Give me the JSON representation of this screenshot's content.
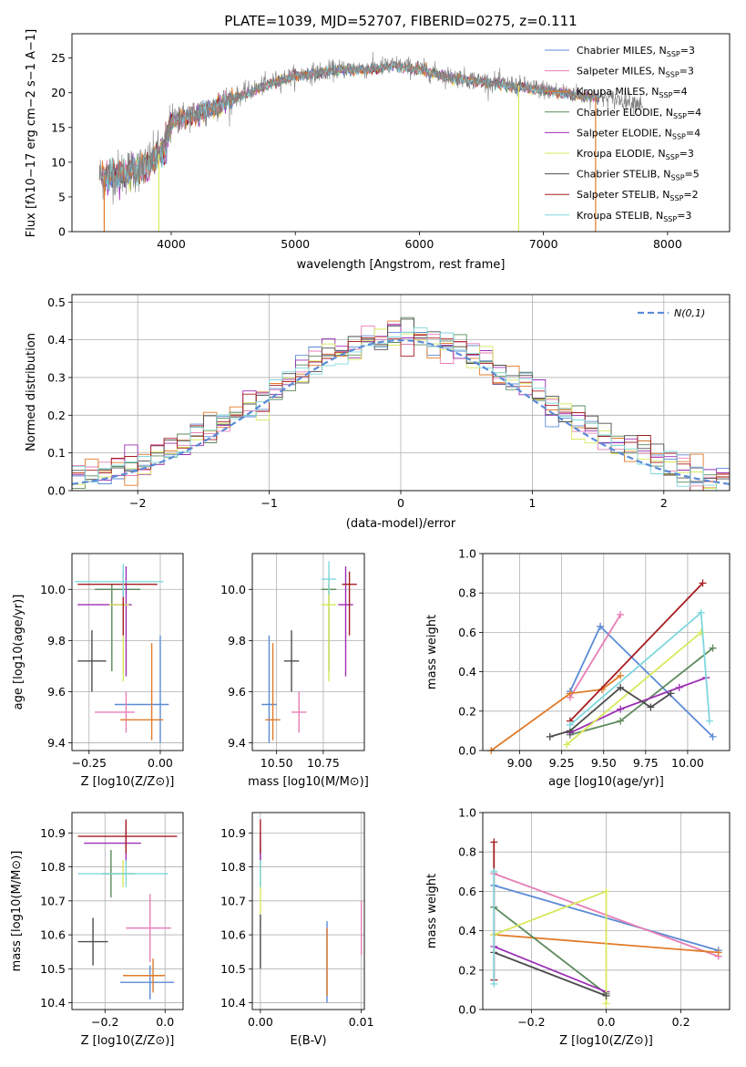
{
  "colors": [
    "#5b8bd6",
    "#e77fb6",
    "#e07b2a",
    "#5c8a5c",
    "#9d2fb5",
    "#d8e85c",
    "#4d4d4d",
    "#a71e22",
    "#7fd8de"
  ],
  "chart_data": [
    {
      "id": "spectrum",
      "type": "line",
      "title": "PLATE=1039, MJD=52707, FIBERID=0275, z=0.111",
      "xlabel": "wavelength [Angstrom, rest frame]",
      "ylabel": "Flux [f$_\\lambda$10$^{-17}$ erg cm$^{-2}$ s$^{-1}$ A$^{-1}$]",
      "ylabel_text": "Flux [fλ10−17 erg cm−2 s−1 A−1]",
      "xlim": [
        3200,
        8500
      ],
      "ylim": [
        0,
        28.5
      ],
      "xticks": [
        4000,
        5000,
        6000,
        7000,
        8000
      ],
      "yticks": [
        0,
        5,
        10,
        15,
        20,
        25
      ],
      "grid": false,
      "legend_placement": "right",
      "legend": [
        "Chabrier MILES, N_SSP=3",
        "Salpeter MILES, N_SSP=3",
        "Kroupa MILES, N_SSP=4",
        "Chabrier ELODIE, N_SSP=4",
        "Salpeter ELODIE, N_SSP=4",
        "Kroupa ELODIE, N_SSP=3",
        "Chabrier STELIB, N_SSP=5",
        "Salpeter STELIB, N_SSP=2",
        "Kroupa STELIB, N_SSP=3"
      ],
      "legend_parts": [
        {
          "pre": "Chabrier MILES, N",
          "sub": "SSP",
          "post": "=3"
        },
        {
          "pre": "Salpeter MILES, N",
          "sub": "SSP",
          "post": "=3"
        },
        {
          "pre": "Kroupa MILES, N",
          "sub": "SSP",
          "post": "=4"
        },
        {
          "pre": "Chabrier ELODIE, N",
          "sub": "SSP",
          "post": "=4"
        },
        {
          "pre": "Salpeter ELODIE, N",
          "sub": "SSP",
          "post": "=4"
        },
        {
          "pre": "Kroupa ELODIE, N",
          "sub": "SSP",
          "post": "=3"
        },
        {
          "pre": "Chabrier STELIB, N",
          "sub": "SSP",
          "post": "=5"
        },
        {
          "pre": "Salpeter STELIB, N",
          "sub": "SSP",
          "post": "=2"
        },
        {
          "pre": "Kroupa STELIB, N",
          "sub": "SSP",
          "post": "=3"
        }
      ],
      "continuum": [
        [
          3420,
          8
        ],
        [
          3600,
          8.5
        ],
        [
          3800,
          9.5
        ],
        [
          3950,
          12
        ],
        [
          4000,
          16
        ],
        [
          4200,
          17
        ],
        [
          4400,
          18.5
        ],
        [
          4600,
          20
        ],
        [
          4800,
          21.5
        ],
        [
          5000,
          22.5
        ],
        [
          5200,
          23
        ],
        [
          5400,
          23.5
        ],
        [
          5600,
          23.5
        ],
        [
          5800,
          24
        ],
        [
          6000,
          23.5
        ],
        [
          6200,
          22.5
        ],
        [
          6400,
          22
        ],
        [
          6600,
          21.5
        ],
        [
          6800,
          21
        ],
        [
          7000,
          20.5
        ],
        [
          7200,
          20
        ],
        [
          7400,
          19.5
        ],
        [
          7600,
          19
        ],
        [
          7800,
          18.5
        ]
      ],
      "drops": [
        [
          3460,
          0,
          "#e07b2a"
        ],
        [
          3900,
          0,
          "#d8e85c"
        ],
        [
          6800,
          0,
          "#d8e85c"
        ],
        [
          7420,
          0,
          "#e07b2a"
        ]
      ]
    },
    {
      "id": "residuals",
      "type": "histogram",
      "xlabel": "(data-model)/error",
      "ylabel": "Normed distribution",
      "xlim": [
        -2.5,
        2.5
      ],
      "ylim": [
        0,
        0.52
      ],
      "xticks": [
        -2,
        -1,
        0,
        1,
        2
      ],
      "yticks": [
        0.0,
        0.1,
        0.2,
        0.3,
        0.4,
        0.5
      ],
      "grid": true,
      "legend_placement": "top-right",
      "gauss_label": "N(0,1)",
      "gauss_color": "#5b8bd6",
      "bin_width": 0.1
    },
    {
      "id": "age_vs_Z",
      "type": "errorbar",
      "xlabel": "Z [log10(Z/Z⊙)]",
      "ylabel": "age  [log10(age/yr)]",
      "xlim": [
        -0.31,
        0.08
      ],
      "ylim": [
        9.37,
        10.14
      ],
      "xticks": [
        -0.25,
        0.0
      ],
      "xticklabels": [
        "−0.25",
        "0.00"
      ],
      "yticks": [
        9.4,
        9.6,
        9.8,
        10.0
      ],
      "yticklabels": [
        "9.4",
        "9.6",
        "9.8",
        "10.0"
      ],
      "grid": true,
      "points": [
        {
          "x": 0.0,
          "y": 9.55,
          "xerr": [
            0.16,
            0.03
          ],
          "yerr": [
            0.15,
            0.27
          ],
          "c": 0
        },
        {
          "x": -0.12,
          "y": 9.52,
          "xerr": [
            0.11,
            0.03
          ],
          "yerr": [
            0.08,
            0.08
          ],
          "c": 1
        },
        {
          "x": -0.03,
          "y": 9.49,
          "xerr": [
            0.11,
            0.04
          ],
          "yerr": [
            0.08,
            0.3
          ],
          "c": 2
        },
        {
          "x": -0.17,
          "y": 10.0,
          "xerr": [
            0.06,
            0.1
          ],
          "yerr": [
            0.32,
            0.02
          ],
          "c": 3
        },
        {
          "x": -0.12,
          "y": 9.94,
          "xerr": [
            0.17,
            0.02
          ],
          "yerr": [
            0.28,
            0.15
          ],
          "c": 4
        },
        {
          "x": -0.13,
          "y": 9.94,
          "xerr": [
            0.05,
            0.02
          ],
          "yerr": [
            0.3,
            0.12
          ],
          "c": 5
        },
        {
          "x": -0.24,
          "y": 9.72,
          "xerr": [
            0.05,
            0.05
          ],
          "yerr": [
            0.12,
            0.12
          ],
          "c": 6
        },
        {
          "x": -0.13,
          "y": 10.02,
          "xerr": [
            0.16,
            0.12
          ],
          "yerr": [
            0.2,
            0.05
          ],
          "c": 7
        },
        {
          "x": -0.13,
          "y": 10.03,
          "xerr": [
            0.17,
            0.14
          ],
          "yerr": [
            0.06,
            0.07
          ],
          "c": 8
        }
      ]
    },
    {
      "id": "age_vs_mass",
      "type": "errorbar",
      "xlabel": "mass [log10(M/M⊙)]",
      "xlim": [
        10.37,
        10.97
      ],
      "ylim": [
        9.37,
        10.14
      ],
      "xticks": [
        10.5,
        10.75
      ],
      "xticklabels": [
        "10.50",
        "10.75"
      ],
      "yticks": [
        9.4,
        9.6,
        9.8,
        10.0
      ],
      "yticklabels": [
        "9.4",
        "9.6",
        "9.8",
        "10.0"
      ],
      "grid": true,
      "points": [
        {
          "x": 10.46,
          "y": 9.55,
          "xerr": [
            0.04,
            0.04
          ],
          "yerr": [
            0.15,
            0.27
          ],
          "c": 0
        },
        {
          "x": 10.62,
          "y": 9.52,
          "xerr": [
            0.04,
            0.04
          ],
          "yerr": [
            0.08,
            0.08
          ],
          "c": 1
        },
        {
          "x": 10.48,
          "y": 9.49,
          "xerr": [
            0.04,
            0.04
          ],
          "yerr": [
            0.08,
            0.3
          ],
          "c": 2
        },
        {
          "x": 10.78,
          "y": 10.0,
          "xerr": [
            0.04,
            0.04
          ],
          "yerr": [
            0.32,
            0.02
          ],
          "c": 3
        },
        {
          "x": 10.87,
          "y": 9.94,
          "xerr": [
            0.04,
            0.04
          ],
          "yerr": [
            0.28,
            0.15
          ],
          "c": 4
        },
        {
          "x": 10.78,
          "y": 9.94,
          "xerr": [
            0.04,
            0.04
          ],
          "yerr": [
            0.3,
            0.12
          ],
          "c": 5
        },
        {
          "x": 10.58,
          "y": 9.72,
          "xerr": [
            0.04,
            0.04
          ],
          "yerr": [
            0.12,
            0.12
          ],
          "c": 6
        },
        {
          "x": 10.89,
          "y": 10.02,
          "xerr": [
            0.04,
            0.04
          ],
          "yerr": [
            0.2,
            0.05
          ],
          "c": 7
        },
        {
          "x": 10.78,
          "y": 10.04,
          "xerr": [
            0.04,
            0.04
          ],
          "yerr": [
            0.06,
            0.07
          ],
          "c": 8
        }
      ]
    },
    {
      "id": "weight_vs_age",
      "type": "line",
      "xlabel": "age  [log10(age/yr)]",
      "ylabel": "mass weight",
      "xlim": [
        8.78,
        10.25
      ],
      "ylim": [
        0.0,
        1.0
      ],
      "xticks": [
        9.0,
        9.25,
        9.5,
        9.75,
        10.0
      ],
      "xticklabels": [
        "9.00",
        "9.25",
        "9.50",
        "9.75",
        "10.00"
      ],
      "yticks": [
        0.0,
        0.2,
        0.4,
        0.6,
        0.8,
        1.0
      ],
      "yticklabels": [
        "0.0",
        "0.2",
        "0.4",
        "0.6",
        "0.8",
        "1.0"
      ],
      "grid": true,
      "series": [
        {
          "c": 0,
          "x": [
            9.3,
            9.48,
            10.15
          ],
          "y": [
            0.3,
            0.63,
            0.07
          ]
        },
        {
          "c": 1,
          "x": [
            9.3,
            9.6
          ],
          "y": [
            0.27,
            0.69
          ]
        },
        {
          "c": 2,
          "x": [
            8.83,
            9.3,
            9.49,
            9.6
          ],
          "y": [
            0.0,
            0.29,
            0.31,
            0.38
          ]
        },
        {
          "c": 3,
          "x": [
            9.3,
            9.6,
            10.15
          ],
          "y": [
            0.08,
            0.15,
            0.52
          ]
        },
        {
          "c": 4,
          "x": [
            9.3,
            9.6,
            9.95,
            10.11
          ],
          "y": [
            0.09,
            0.21,
            0.32,
            0.37
          ]
        },
        {
          "c": 5,
          "x": [
            9.28,
            10.08
          ],
          "y": [
            0.03,
            0.6
          ]
        },
        {
          "c": 6,
          "x": [
            9.18,
            9.3,
            9.6,
            9.78,
            9.9
          ],
          "y": [
            0.07,
            0.1,
            0.32,
            0.22,
            0.29
          ]
        },
        {
          "c": 7,
          "x": [
            9.3,
            10.09
          ],
          "y": [
            0.15,
            0.85
          ]
        },
        {
          "c": 8,
          "x": [
            9.3,
            10.08,
            10.13
          ],
          "y": [
            0.13,
            0.7,
            0.15
          ]
        }
      ]
    },
    {
      "id": "mass_vs_Z",
      "type": "errorbar",
      "xlabel": "Z [log10(Z/Z⊙)]",
      "ylabel": "mass [log10(M/M⊙)]",
      "xlim": [
        -0.31,
        0.06
      ],
      "ylim": [
        10.38,
        10.96
      ],
      "xticks": [
        -0.2,
        0.0
      ],
      "xticklabels": [
        "−0.2",
        "0.0"
      ],
      "yticks": [
        10.4,
        10.5,
        10.6,
        10.7,
        10.8,
        10.9
      ],
      "yticklabels": [
        "10.4",
        "10.5",
        "10.6",
        "10.7",
        "10.8",
        "10.9"
      ],
      "grid": true,
      "points": [
        {
          "x": -0.05,
          "y": 10.46,
          "xerr": [
            0.1,
            0.08
          ],
          "yerr": [
            0.05,
            0.05
          ],
          "c": 0
        },
        {
          "x": -0.05,
          "y": 10.62,
          "xerr": [
            0.08,
            0.07
          ],
          "yerr": [
            0.1,
            0.1
          ],
          "c": 1
        },
        {
          "x": -0.04,
          "y": 10.48,
          "xerr": [
            0.1,
            0.04
          ],
          "yerr": [
            0.05,
            0.05
          ],
          "c": 2
        },
        {
          "x": -0.18,
          "y": 10.78,
          "xerr": [
            0.03,
            0.08
          ],
          "yerr": [
            0.07,
            0.07
          ],
          "c": 3
        },
        {
          "x": -0.13,
          "y": 10.87,
          "xerr": [
            0.14,
            0.05
          ],
          "yerr": [
            0.06,
            0.06
          ],
          "c": 4
        },
        {
          "x": -0.14,
          "y": 10.78,
          "xerr": [
            0.04,
            0.04
          ],
          "yerr": [
            0.04,
            0.04
          ],
          "c": 5
        },
        {
          "x": -0.24,
          "y": 10.58,
          "xerr": [
            0.05,
            0.05
          ],
          "yerr": [
            0.07,
            0.07
          ],
          "c": 6
        },
        {
          "x": -0.13,
          "y": 10.89,
          "xerr": [
            0.16,
            0.17
          ],
          "yerr": [
            0.05,
            0.05
          ],
          "c": 7
        },
        {
          "x": -0.13,
          "y": 10.78,
          "xerr": [
            0.16,
            0.14
          ],
          "yerr": [
            0.04,
            0.04
          ],
          "c": 8
        }
      ]
    },
    {
      "id": "mass_vs_ebv",
      "type": "errorbar",
      "xlabel": "E(B-V)",
      "xlim": [
        -0.0008,
        0.0103
      ],
      "ylim": [
        10.38,
        10.96
      ],
      "xticks": [
        0.0,
        0.01
      ],
      "xticklabels": [
        "0.00",
        "0.01"
      ],
      "yticks": [
        10.4,
        10.5,
        10.6,
        10.7,
        10.8,
        10.9
      ],
      "yticklabels": [
        "10.4",
        "10.5",
        "10.6",
        "10.7",
        "10.8",
        "10.9"
      ],
      "grid": true,
      "points": [
        {
          "x": 0.0066,
          "y": 10.52,
          "xerr": [
            0,
            0
          ],
          "yerr": [
            0.12,
            0.12
          ],
          "c": 0
        },
        {
          "x": 0.01,
          "y": 10.62,
          "xerr": [
            0,
            0
          ],
          "yerr": [
            0.08,
            0.08
          ],
          "c": 1
        },
        {
          "x": 0.0066,
          "y": 10.52,
          "xerr": [
            0,
            0
          ],
          "yerr": [
            0.1,
            0.1
          ],
          "c": 2
        },
        {
          "x": 0.0,
          "y": 10.8,
          "xerr": [
            0,
            0
          ],
          "yerr": [
            0.06,
            0.06
          ],
          "c": 3
        },
        {
          "x": 0.0,
          "y": 10.85,
          "xerr": [
            0,
            0
          ],
          "yerr": [
            0.05,
            0.05
          ],
          "c": 4
        },
        {
          "x": 0.0,
          "y": 10.74,
          "xerr": [
            0,
            0
          ],
          "yerr": [
            0.08,
            0.08
          ],
          "c": 5
        },
        {
          "x": 0.0,
          "y": 10.58,
          "xerr": [
            0,
            0
          ],
          "yerr": [
            0.08,
            0.08
          ],
          "c": 6
        },
        {
          "x": 0.0,
          "y": 10.89,
          "xerr": [
            0,
            0
          ],
          "yerr": [
            0.05,
            0.05
          ],
          "c": 7
        },
        {
          "x": 0.0,
          "y": 10.78,
          "xerr": [
            0,
            0
          ],
          "yerr": [
            0.04,
            0.04
          ],
          "c": 8
        }
      ]
    },
    {
      "id": "weight_vs_Z",
      "type": "line",
      "xlabel": "Z [log10(Z/Z⊙)]",
      "ylabel": "mass weight",
      "xlim": [
        -0.33,
        0.33
      ],
      "ylim": [
        0.0,
        1.0
      ],
      "xticks": [
        -0.2,
        0.0,
        0.2
      ],
      "xticklabels": [
        "−0.2",
        "0.0",
        "0.2"
      ],
      "yticks": [
        0.0,
        0.2,
        0.4,
        0.6,
        0.8,
        1.0
      ],
      "yticklabels": [
        "0.0",
        "0.2",
        "0.4",
        "0.6",
        "0.8",
        "1.0"
      ],
      "grid": true,
      "series": [
        {
          "c": 0,
          "x": [
            -0.3,
            0.3
          ],
          "y": [
            0.63,
            0.3
          ]
        },
        {
          "c": 1,
          "x": [
            -0.3,
            0.3
          ],
          "y": [
            0.69,
            0.27
          ]
        },
        {
          "c": 2,
          "x": [
            -0.3,
            0.3
          ],
          "y": [
            0.38,
            0.29
          ]
        },
        {
          "c": 3,
          "x": [
            -0.3,
            0.0
          ],
          "y": [
            0.52,
            0.08
          ]
        },
        {
          "c": 4,
          "x": [
            -0.3,
            0.0
          ],
          "y": [
            0.32,
            0.09
          ]
        },
        {
          "c": 5,
          "x": [
            -0.3,
            0.0,
            0.0
          ],
          "y": [
            0.38,
            0.6,
            0.03
          ]
        },
        {
          "c": 6,
          "x": [
            -0.3,
            0.0
          ],
          "y": [
            0.29,
            0.07
          ]
        },
        {
          "c": 7,
          "x": [
            -0.3,
            -0.3
          ],
          "y": [
            0.85,
            0.15
          ]
        },
        {
          "c": 8,
          "x": [
            -0.3,
            -0.3
          ],
          "y": [
            0.7,
            0.13
          ]
        }
      ]
    }
  ]
}
